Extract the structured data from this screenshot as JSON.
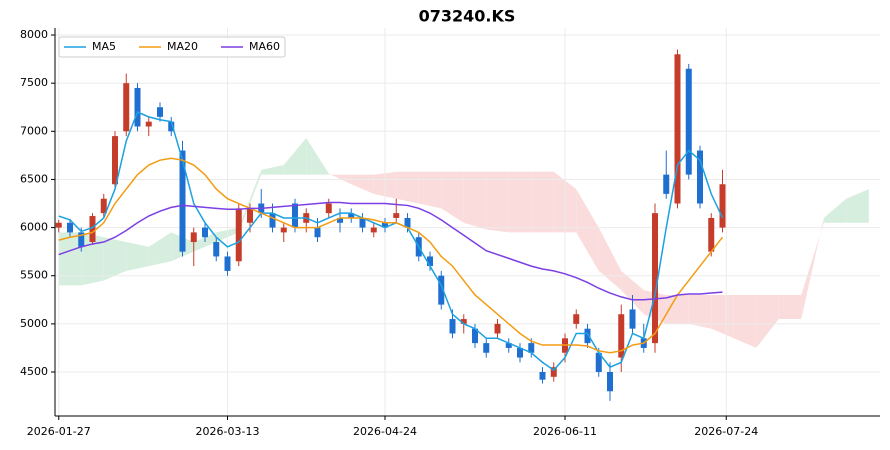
{
  "chart_data": {
    "type": "candlestick",
    "title": "073240.KS",
    "xlim": [
      "2026-01-26",
      "2026-09-03"
    ],
    "xticks": [
      "2026-01-27",
      "2026-03-13",
      "2026-04-24",
      "2026-06-11",
      "2026-07-24"
    ],
    "ylim": [
      4043,
      8073
    ],
    "yticks": [
      4500,
      5000,
      5500,
      6000,
      6500,
      7000,
      7500,
      8000
    ],
    "grid": true,
    "legend": "upper left",
    "up_color": "#c63c2b",
    "down_color": "#1f6fd1",
    "cloud_up_color": "#d6eedd",
    "cloud_down_color": "#fbdcdc",
    "candles": {
      "x": [
        "2026-01-27",
        "2026-01-30",
        "2026-02-02",
        "2026-02-05",
        "2026-02-08",
        "2026-02-11",
        "2026-02-14",
        "2026-02-17",
        "2026-02-20",
        "2026-02-23",
        "2026-02-26",
        "2026-03-01",
        "2026-03-04",
        "2026-03-07",
        "2026-03-10",
        "2026-03-13",
        "2026-03-16",
        "2026-03-19",
        "2026-03-22",
        "2026-03-25",
        "2026-03-28",
        "2026-03-31",
        "2026-04-03",
        "2026-04-06",
        "2026-04-09",
        "2026-04-12",
        "2026-04-15",
        "2026-04-18",
        "2026-04-21",
        "2026-04-24",
        "2026-04-27",
        "2026-04-30",
        "2026-05-03",
        "2026-05-06",
        "2026-05-09",
        "2026-05-12",
        "2026-05-15",
        "2026-05-18",
        "2026-05-21",
        "2026-05-24",
        "2026-05-27",
        "2026-05-30",
        "2026-06-02",
        "2026-06-05",
        "2026-06-08",
        "2026-06-11",
        "2026-06-14",
        "2026-06-17",
        "2026-06-20",
        "2026-06-23",
        "2026-06-26",
        "2026-06-29",
        "2026-07-02",
        "2026-07-05",
        "2026-07-08",
        "2026-07-11",
        "2026-07-14",
        "2026-07-17",
        "2026-07-20",
        "2026-07-23"
      ],
      "open": [
        6000,
        6050,
        5950,
        5850,
        6150,
        6450,
        7000,
        7450,
        7050,
        7250,
        7100,
        6800,
        5850,
        6000,
        5850,
        5700,
        5650,
        6050,
        6250,
        6150,
        5950,
        6250,
        6050,
        6000,
        6150,
        6100,
        6150,
        6100,
        5950,
        6050,
        6100,
        6100,
        5900,
        5700,
        5500,
        5050,
        5000,
        4950,
        4800,
        4900,
        4800,
        4750,
        4800,
        4500,
        4450,
        4700,
        5000,
        4950,
        4700,
        4500,
        4650,
        5150,
        4850,
        4800,
        6550,
        6250,
        7650,
        6800,
        5750,
        6000
      ],
      "high": [
        6080,
        6090,
        6000,
        6150,
        6350,
        7000,
        7600,
        7500,
        7150,
        7300,
        7150,
        6900,
        6000,
        6050,
        5900,
        5750,
        6250,
        6250,
        6400,
        6250,
        6050,
        6300,
        6200,
        6100,
        6300,
        6200,
        6200,
        6150,
        6050,
        6100,
        6300,
        6150,
        5950,
        5750,
        5550,
        5150,
        5100,
        5000,
        4850,
        5050,
        4850,
        4800,
        4850,
        4550,
        4600,
        4900,
        5150,
        5000,
        4750,
        4600,
        5200,
        5300,
        5000,
        6250,
        6800,
        7850,
        7700,
        6850,
        6150,
        6600
      ],
      "low": [
        5950,
        5900,
        5750,
        5820,
        6100,
        6400,
        6950,
        7000,
        6950,
        7100,
        6950,
        5700,
        5600,
        5850,
        5650,
        5500,
        5600,
        5950,
        6100,
        5950,
        5850,
        5950,
        5950,
        5850,
        6100,
        5950,
        6050,
        5950,
        5900,
        5950,
        6050,
        5950,
        5650,
        5550,
        5150,
        4850,
        4900,
        4750,
        4650,
        4850,
        4700,
        4600,
        4650,
        4380,
        4400,
        4600,
        4950,
        4750,
        4450,
        4200,
        4500,
        4900,
        4700,
        4700,
        6300,
        6200,
        6500,
        6200,
        5700,
        5950
      ],
      "close": [
        6050,
        5950,
        5800,
        6120,
        6300,
        6950,
        7500,
        7050,
        7100,
        7150,
        7000,
        5750,
        5950,
        5900,
        5700,
        5550,
        6200,
        6200,
        6150,
        6000,
        6000,
        6000,
        6150,
        5900,
        6250,
        6050,
        6100,
        6000,
        6000,
        6000,
        6150,
        6000,
        5700,
        5600,
        5200,
        4900,
        5050,
        4800,
        4700,
        5000,
        4750,
        4650,
        4700,
        4420,
        4550,
        4850,
        5100,
        4800,
        4500,
        4300,
        5100,
        4950,
        4750,
        6150,
        6350,
        7800,
        6550,
        6250,
        6100,
        6450
      ]
    },
    "series": [
      {
        "name": "MA5",
        "color": "#1ba1e2",
        "values": [
          6120,
          6080,
          5960,
          6000,
          6100,
          6400,
          6900,
          7200,
          7150,
          7120,
          7100,
          6700,
          6250,
          6050,
          5900,
          5800,
          5850,
          6000,
          6150,
          6150,
          6100,
          6100,
          6100,
          6050,
          6100,
          6150,
          6150,
          6100,
          6050,
          6000,
          6050,
          6000,
          5800,
          5600,
          5400,
          5100,
          5000,
          4950,
          4850,
          4850,
          4800,
          4750,
          4700,
          4600,
          4520,
          4650,
          4900,
          4900,
          4700,
          4550,
          4600,
          4900,
          4850,
          5300,
          6000,
          6650,
          6800,
          6700,
          6350,
          6100
        ]
      },
      {
        "name": "MA20",
        "color": "#f39c12",
        "values": [
          5870,
          5900,
          5920,
          5950,
          6050,
          6250,
          6400,
          6550,
          6650,
          6700,
          6720,
          6700,
          6650,
          6550,
          6400,
          6300,
          6250,
          6200,
          6150,
          6100,
          6050,
          6000,
          6000,
          6000,
          6050,
          6100,
          6100,
          6100,
          6080,
          6050,
          6050,
          6000,
          5950,
          5850,
          5700,
          5600,
          5450,
          5300,
          5200,
          5100,
          5000,
          4900,
          4820,
          4780,
          4780,
          4780,
          4780,
          4770,
          4720,
          4700,
          4720,
          4780,
          4800,
          4900,
          5100,
          5300,
          5450,
          5600,
          5750,
          5900
        ]
      },
      {
        "name": "MA60",
        "color": "#7b3fe4",
        "values": [
          5720,
          5760,
          5800,
          5830,
          5850,
          5900,
          5970,
          6050,
          6120,
          6170,
          6210,
          6230,
          6220,
          6210,
          6200,
          6190,
          6190,
          6200,
          6200,
          6210,
          6220,
          6230,
          6240,
          6250,
          6260,
          6260,
          6250,
          6250,
          6250,
          6250,
          6240,
          6230,
          6200,
          6150,
          6080,
          6000,
          5920,
          5840,
          5760,
          5720,
          5680,
          5640,
          5600,
          5570,
          5550,
          5520,
          5480,
          5430,
          5370,
          5320,
          5280,
          5250,
          5250,
          5260,
          5270,
          5300,
          5310,
          5310,
          5320,
          5330
        ]
      }
    ],
    "cloud": {
      "x": [
        "2026-01-27",
        "2026-02-02",
        "2026-02-08",
        "2026-02-14",
        "2026-02-20",
        "2026-02-26",
        "2026-03-04",
        "2026-03-10",
        "2026-03-16",
        "2026-03-22",
        "2026-03-28",
        "2026-04-03",
        "2026-04-09",
        "2026-04-15",
        "2026-04-21",
        "2026-04-27",
        "2026-05-03",
        "2026-05-09",
        "2026-05-15",
        "2026-05-21",
        "2026-05-27",
        "2026-06-02",
        "2026-06-08",
        "2026-06-14",
        "2026-06-20",
        "2026-06-26",
        "2026-07-02",
        "2026-07-08",
        "2026-07-14",
        "2026-07-20",
        "2026-07-26",
        "2026-08-01",
        "2026-08-07",
        "2026-08-13",
        "2026-08-19",
        "2026-08-25",
        "2026-08-31"
      ],
      "span_a": [
        5950,
        5950,
        5900,
        5850,
        5800,
        5950,
        5850,
        5950,
        6000,
        6600,
        6650,
        6930,
        6560,
        6450,
        6350,
        6300,
        6250,
        6200,
        6050,
        5980,
        5950,
        5950,
        5950,
        5950,
        5550,
        5350,
        5100,
        5000,
        5000,
        4950,
        4850,
        4750,
        5050,
        5050,
        6100,
        6300,
        6400
      ],
      "span_b": [
        5400,
        5400,
        5450,
        5550,
        5600,
        5650,
        5750,
        5850,
        5950,
        6550,
        6550,
        6550,
        6550,
        6550,
        6550,
        6580,
        6580,
        6580,
        6580,
        6580,
        6580,
        6580,
        6580,
        6400,
        6000,
        5550,
        5350,
        5300,
        5300,
        5300,
        5300,
        5300,
        5300,
        5300,
        6050,
        6050,
        6050
      ]
    }
  }
}
